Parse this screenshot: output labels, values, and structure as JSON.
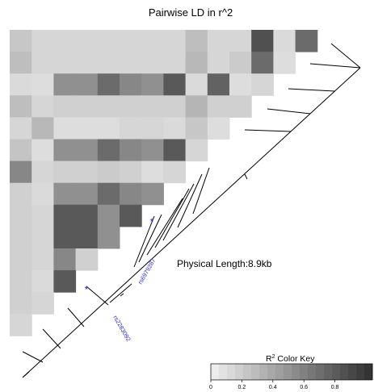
{
  "chart_data": {
    "type": "heatmap",
    "title": "Pairwise LD in r^2",
    "physical_length_label": "Physical Length:8.9kb",
    "highlighted_snps": [
      "rs6979287",
      "rs2283092"
    ],
    "marker": "*",
    "color_key": {
      "title_prefix": "R",
      "title_sup": "2",
      "title_suffix": " Color Key",
      "ticks": [
        "0",
        "0.2",
        "0.4",
        "0.6",
        "0.8"
      ],
      "range": [
        0,
        1
      ],
      "n_colors": 20
    },
    "matrix": [
      [
        0.2,
        0.12,
        0.12,
        0.12,
        0.12,
        0.12,
        0.12,
        0.12,
        0.25,
        0.12,
        0.12,
        0.85,
        0.1,
        0.7
      ],
      [
        0.25,
        0.12,
        0.12,
        0.12,
        0.12,
        0.12,
        0.12,
        0.12,
        0.28,
        0.12,
        0.18,
        0.7,
        0.08
      ],
      [
        0.1,
        0.08,
        0.5,
        0.5,
        0.7,
        0.55,
        0.5,
        0.8,
        0.1,
        0.75,
        0.08,
        0.12
      ],
      [
        0.25,
        0.12,
        0.15,
        0.15,
        0.15,
        0.15,
        0.15,
        0.15,
        0.3,
        0.15,
        0.15
      ],
      [
        0.12,
        0.28,
        0.08,
        0.08,
        0.08,
        0.12,
        0.12,
        0.1,
        0.2,
        0.08
      ],
      [
        0.22,
        0.08,
        0.5,
        0.5,
        0.7,
        0.55,
        0.5,
        0.8,
        0.12
      ],
      [
        0.55,
        0.12,
        0.15,
        0.15,
        0.18,
        0.15,
        0.08,
        0.12
      ],
      [
        0.15,
        0.1,
        0.5,
        0.5,
        0.7,
        0.55,
        0.5
      ],
      [
        0.15,
        0.12,
        0.8,
        0.8,
        0.5,
        0.8
      ],
      [
        0.15,
        0.12,
        0.8,
        0.8,
        0.5
      ],
      [
        0.15,
        0.12,
        0.55,
        0.15
      ],
      [
        0.15,
        0.1,
        0.8
      ],
      [
        0.15,
        0.12
      ],
      [
        0.12
      ]
    ]
  }
}
